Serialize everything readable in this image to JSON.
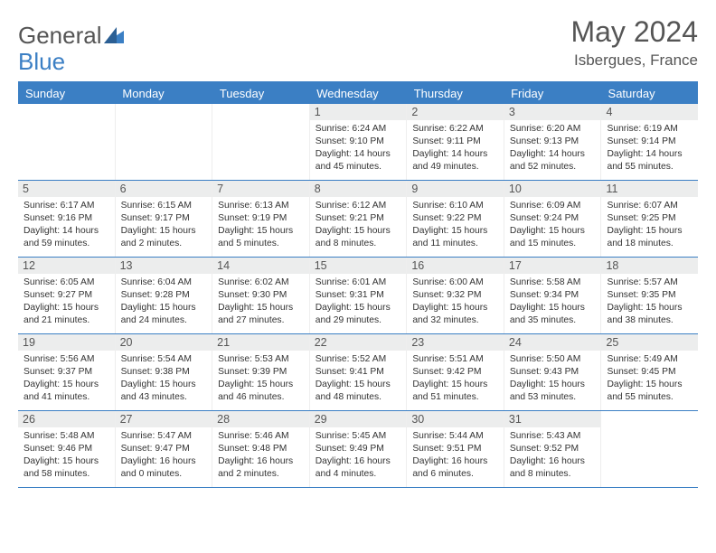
{
  "logo": {
    "part1": "General",
    "part2": "Blue"
  },
  "title": "May 2024",
  "subtitle": "Isbergues, France",
  "colors": {
    "accent": "#3b7fc4",
    "daynum_bg": "#eceded",
    "text": "#555555"
  },
  "days_of_week": [
    "Sunday",
    "Monday",
    "Tuesday",
    "Wednesday",
    "Thursday",
    "Friday",
    "Saturday"
  ],
  "weeks": [
    [
      null,
      null,
      null,
      {
        "n": "1",
        "sr": "6:24 AM",
        "ss": "9:10 PM",
        "dl": "14 hours and 45 minutes."
      },
      {
        "n": "2",
        "sr": "6:22 AM",
        "ss": "9:11 PM",
        "dl": "14 hours and 49 minutes."
      },
      {
        "n": "3",
        "sr": "6:20 AM",
        "ss": "9:13 PM",
        "dl": "14 hours and 52 minutes."
      },
      {
        "n": "4",
        "sr": "6:19 AM",
        "ss": "9:14 PM",
        "dl": "14 hours and 55 minutes."
      }
    ],
    [
      {
        "n": "5",
        "sr": "6:17 AM",
        "ss": "9:16 PM",
        "dl": "14 hours and 59 minutes."
      },
      {
        "n": "6",
        "sr": "6:15 AM",
        "ss": "9:17 PM",
        "dl": "15 hours and 2 minutes."
      },
      {
        "n": "7",
        "sr": "6:13 AM",
        "ss": "9:19 PM",
        "dl": "15 hours and 5 minutes."
      },
      {
        "n": "8",
        "sr": "6:12 AM",
        "ss": "9:21 PM",
        "dl": "15 hours and 8 minutes."
      },
      {
        "n": "9",
        "sr": "6:10 AM",
        "ss": "9:22 PM",
        "dl": "15 hours and 11 minutes."
      },
      {
        "n": "10",
        "sr": "6:09 AM",
        "ss": "9:24 PM",
        "dl": "15 hours and 15 minutes."
      },
      {
        "n": "11",
        "sr": "6:07 AM",
        "ss": "9:25 PM",
        "dl": "15 hours and 18 minutes."
      }
    ],
    [
      {
        "n": "12",
        "sr": "6:05 AM",
        "ss": "9:27 PM",
        "dl": "15 hours and 21 minutes."
      },
      {
        "n": "13",
        "sr": "6:04 AM",
        "ss": "9:28 PM",
        "dl": "15 hours and 24 minutes."
      },
      {
        "n": "14",
        "sr": "6:02 AM",
        "ss": "9:30 PM",
        "dl": "15 hours and 27 minutes."
      },
      {
        "n": "15",
        "sr": "6:01 AM",
        "ss": "9:31 PM",
        "dl": "15 hours and 29 minutes."
      },
      {
        "n": "16",
        "sr": "6:00 AM",
        "ss": "9:32 PM",
        "dl": "15 hours and 32 minutes."
      },
      {
        "n": "17",
        "sr": "5:58 AM",
        "ss": "9:34 PM",
        "dl": "15 hours and 35 minutes."
      },
      {
        "n": "18",
        "sr": "5:57 AM",
        "ss": "9:35 PM",
        "dl": "15 hours and 38 minutes."
      }
    ],
    [
      {
        "n": "19",
        "sr": "5:56 AM",
        "ss": "9:37 PM",
        "dl": "15 hours and 41 minutes."
      },
      {
        "n": "20",
        "sr": "5:54 AM",
        "ss": "9:38 PM",
        "dl": "15 hours and 43 minutes."
      },
      {
        "n": "21",
        "sr": "5:53 AM",
        "ss": "9:39 PM",
        "dl": "15 hours and 46 minutes."
      },
      {
        "n": "22",
        "sr": "5:52 AM",
        "ss": "9:41 PM",
        "dl": "15 hours and 48 minutes."
      },
      {
        "n": "23",
        "sr": "5:51 AM",
        "ss": "9:42 PM",
        "dl": "15 hours and 51 minutes."
      },
      {
        "n": "24",
        "sr": "5:50 AM",
        "ss": "9:43 PM",
        "dl": "15 hours and 53 minutes."
      },
      {
        "n": "25",
        "sr": "5:49 AM",
        "ss": "9:45 PM",
        "dl": "15 hours and 55 minutes."
      }
    ],
    [
      {
        "n": "26",
        "sr": "5:48 AM",
        "ss": "9:46 PM",
        "dl": "15 hours and 58 minutes."
      },
      {
        "n": "27",
        "sr": "5:47 AM",
        "ss": "9:47 PM",
        "dl": "16 hours and 0 minutes."
      },
      {
        "n": "28",
        "sr": "5:46 AM",
        "ss": "9:48 PM",
        "dl": "16 hours and 2 minutes."
      },
      {
        "n": "29",
        "sr": "5:45 AM",
        "ss": "9:49 PM",
        "dl": "16 hours and 4 minutes."
      },
      {
        "n": "30",
        "sr": "5:44 AM",
        "ss": "9:51 PM",
        "dl": "16 hours and 6 minutes."
      },
      {
        "n": "31",
        "sr": "5:43 AM",
        "ss": "9:52 PM",
        "dl": "16 hours and 8 minutes."
      },
      null
    ]
  ],
  "labels": {
    "sunrise": "Sunrise:",
    "sunset": "Sunset:",
    "daylight": "Daylight:"
  }
}
